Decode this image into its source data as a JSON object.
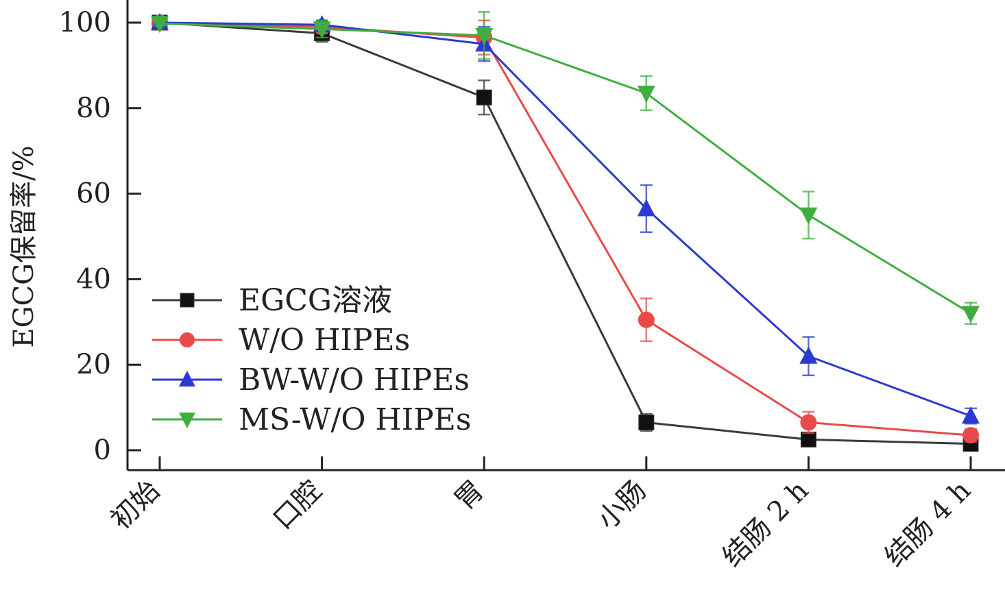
{
  "chart_data": {
    "type": "line",
    "title": "",
    "ylabel": "EGCG保留率/%",
    "xlabel": "",
    "categories": [
      "初始",
      "口腔",
      "胃",
      "小肠",
      "结肠 2 h",
      "结肠 4 h"
    ],
    "ylim": [
      -5,
      105
    ],
    "yticks": [
      0,
      20,
      40,
      60,
      80,
      100
    ],
    "grid": false,
    "legend_position": "left-center",
    "series": [
      {
        "name": "EGCG溶液",
        "color": "#3a3a3a",
        "marker": "square",
        "values": [
          100,
          97.5,
          82.5,
          6.5,
          2.5,
          1.5
        ],
        "errors": [
          0.5,
          2,
          4,
          2,
          0.8,
          0.8
        ]
      },
      {
        "name": "W/O HIPEs",
        "color": "#e84a4a",
        "marker": "circle",
        "values": [
          100,
          99,
          96.5,
          30.5,
          6.5,
          3.5
        ],
        "errors": [
          0.5,
          1.5,
          4,
          5,
          2.5,
          1.5
        ]
      },
      {
        "name": "BW-W/O HIPEs",
        "color": "#2a3ad0",
        "marker": "triangle-up",
        "values": [
          100,
          99.5,
          95,
          56.5,
          22,
          8
        ],
        "errors": [
          0.5,
          1,
          4,
          5.5,
          4.5,
          1.8
        ]
      },
      {
        "name": "MS-W/O HIPEs",
        "color": "#3fae3f",
        "marker": "triangle-down",
        "values": [
          99.8,
          98.5,
          97,
          83.5,
          55,
          32
        ],
        "errors": [
          0.5,
          2,
          5.5,
          4,
          5.5,
          2.5
        ]
      }
    ]
  }
}
